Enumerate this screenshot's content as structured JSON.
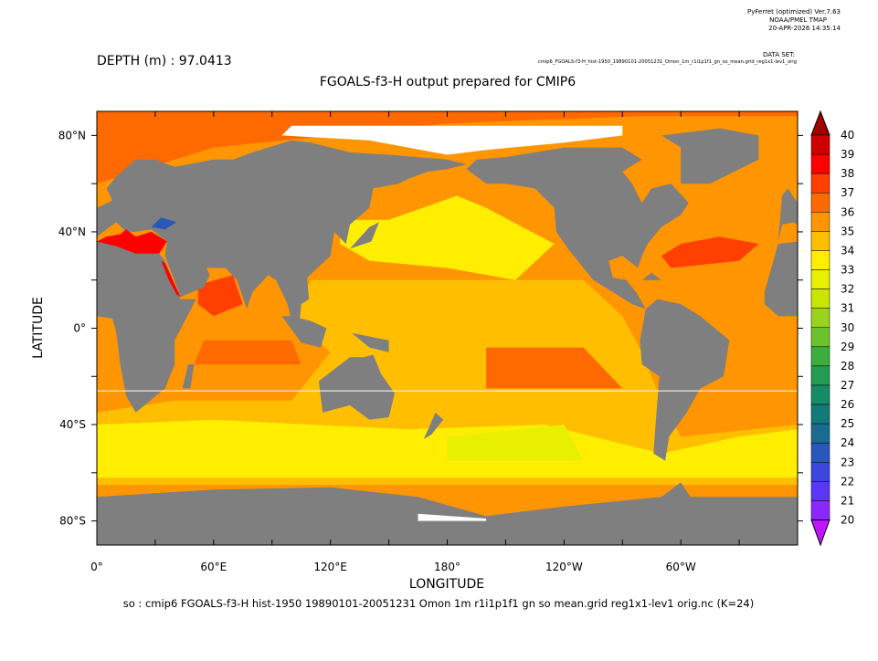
{
  "header": {
    "version": "PyFerret (optimized) Ver.7.63",
    "lab": "NOAA/PMEL TMAP",
    "date": "20-APR-2026 14:35:14",
    "dataset_label": "DATA SET:",
    "dataset": "cmip6_FGOALS-f3-H_hist-1950_19890101-20051231_Omon_1m_r1i1p1f1_gn_so_mean.grid_reg1x1-lev1_orig"
  },
  "depth": "DEPTH (m) : 97.0413",
  "title": "FGOALS-f3-H output prepared for CMIP6",
  "x_axis": {
    "label": "LONGITUDE",
    "ticks": [
      "0°",
      "60°E",
      "120°E",
      "180°",
      "120°W",
      "60°W"
    ]
  },
  "y_axis": {
    "label": "LATITUDE",
    "ticks": [
      "80°N",
      "40°N",
      "0°",
      "40°S",
      "80°S"
    ]
  },
  "colorbar": {
    "labels": [
      "40",
      "39",
      "38",
      "37",
      "36",
      "35",
      "34",
      "33",
      "32",
      "31",
      "30",
      "29",
      "28",
      "27",
      "26",
      "25",
      "24",
      "23",
      "22",
      "21",
      "20"
    ],
    "colors": [
      "#a00000",
      "#d00000",
      "#ff0000",
      "#ff4000",
      "#ff6a00",
      "#ff9500",
      "#ffbf00",
      "#ffee00",
      "#e8f000",
      "#c8e600",
      "#9bd21e",
      "#6cc22c",
      "#3cae3c",
      "#259a52",
      "#178a66",
      "#127a78",
      "#1a6a92",
      "#2a58b8",
      "#3a46dc",
      "#5a36f8",
      "#8a28ff",
      "#c014ff"
    ]
  },
  "footer": "so : cmip6 FGOALS-f3-H hist-1950 19890101-20051231 Omon 1m r1i1p1f1 gn so mean.grid reg1x1-lev1 orig.nc (K=24)"
}
